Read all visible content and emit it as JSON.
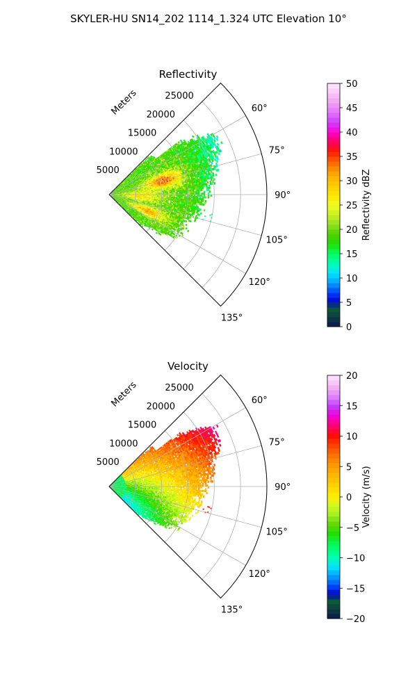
{
  "suptitle": "SKYLER-HU  SN14_202  1114_1.324 UTC Elevation 10°",
  "chart_data": [
    {
      "type": "polar-sector",
      "title": "Reflectivity",
      "radial_label": "Meters",
      "radial_ticks": [
        5000,
        10000,
        15000,
        20000,
        25000
      ],
      "radial_tick_labels": [
        "5000",
        "10000",
        "15000",
        "20000",
        "25000"
      ],
      "rlim": [
        0,
        30000
      ],
      "theta_ticks": [
        60,
        75,
        90,
        105,
        120,
        135
      ],
      "theta_tick_labels": [
        "60°",
        "75°",
        "90°",
        "105°",
        "120°",
        "135°"
      ],
      "thetalim_deg": [
        45,
        135
      ],
      "grid": true,
      "colorbar": {
        "label": "Reflectivity dBZ",
        "range": [
          0,
          50
        ],
        "ticks": [
          0,
          5,
          10,
          15,
          20,
          25,
          30,
          35,
          40,
          45,
          50
        ],
        "tick_labels": [
          "0",
          "5",
          "10",
          "15",
          "20",
          "25",
          "30",
          "35",
          "40",
          "45",
          "50"
        ],
        "colors": [
          {
            "v": 0,
            "c": "#0a1a4e"
          },
          {
            "v": 2,
            "c": "#0f3d3d"
          },
          {
            "v": 4,
            "c": "#0a5e3a"
          },
          {
            "v": 5,
            "c": "#0000c8"
          },
          {
            "v": 7,
            "c": "#0040ff"
          },
          {
            "v": 9,
            "c": "#00a0ff"
          },
          {
            "v": 11,
            "c": "#00e6ff"
          },
          {
            "v": 13,
            "c": "#00ffb4"
          },
          {
            "v": 15,
            "c": "#00ff60"
          },
          {
            "v": 17,
            "c": "#20e000"
          },
          {
            "v": 19,
            "c": "#50d000"
          },
          {
            "v": 21,
            "c": "#90e020"
          },
          {
            "v": 23,
            "c": "#c8f020"
          },
          {
            "v": 25,
            "c": "#f0ff20"
          },
          {
            "v": 27,
            "c": "#ffe600"
          },
          {
            "v": 30,
            "c": "#ffc000"
          },
          {
            "v": 32,
            "c": "#ff9a00"
          },
          {
            "v": 34,
            "c": "#ff6000"
          },
          {
            "v": 36,
            "c": "#ff1800"
          },
          {
            "v": 38,
            "c": "#ff0060"
          },
          {
            "v": 40,
            "c": "#ff00d0"
          },
          {
            "v": 42,
            "c": "#d040ff"
          },
          {
            "v": 44,
            "c": "#e070ff"
          },
          {
            "v": 46,
            "c": "#f0a0f0"
          },
          {
            "v": 48,
            "c": "#f8c8f8"
          },
          {
            "v": 50,
            "c": "#fde6fd"
          }
        ]
      }
    },
    {
      "type": "polar-sector",
      "title": "Velocity",
      "radial_label": "Meters",
      "radial_ticks": [
        5000,
        10000,
        15000,
        20000,
        25000
      ],
      "radial_tick_labels": [
        "5000",
        "10000",
        "15000",
        "20000",
        "25000"
      ],
      "rlim": [
        0,
        30000
      ],
      "theta_ticks": [
        60,
        75,
        90,
        105,
        120,
        135
      ],
      "theta_tick_labels": [
        "60°",
        "75°",
        "90°",
        "105°",
        "120°",
        "135°"
      ],
      "thetalim_deg": [
        45,
        135
      ],
      "grid": true,
      "colorbar": {
        "label": "Velocity (m/s)",
        "range": [
          -20,
          20
        ],
        "ticks": [
          -20,
          -15,
          -10,
          -5,
          0,
          5,
          10,
          15,
          20
        ],
        "tick_labels": [
          "−20",
          "−15",
          "−10",
          "−5",
          "0",
          "5",
          "10",
          "15",
          "20"
        ],
        "colors": [
          {
            "v": -20,
            "c": "#0a1a4e"
          },
          {
            "v": -18.5,
            "c": "#0f3d3d"
          },
          {
            "v": -17,
            "c": "#0a5e3a"
          },
          {
            "v": -16,
            "c": "#0000c8"
          },
          {
            "v": -14.5,
            "c": "#0050ff"
          },
          {
            "v": -13,
            "c": "#00a0ff"
          },
          {
            "v": -11.5,
            "c": "#00e6ff"
          },
          {
            "v": -10,
            "c": "#00ffb4"
          },
          {
            "v": -8,
            "c": "#00ff60"
          },
          {
            "v": -6,
            "c": "#20e000"
          },
          {
            "v": -4.5,
            "c": "#60d800"
          },
          {
            "v": -3,
            "c": "#a0f020"
          },
          {
            "v": -1.5,
            "c": "#d0f820"
          },
          {
            "v": 0,
            "c": "#fff000"
          },
          {
            "v": 2,
            "c": "#ffd000"
          },
          {
            "v": 4,
            "c": "#ffb000"
          },
          {
            "v": 6,
            "c": "#ff8a00"
          },
          {
            "v": 8,
            "c": "#ff5000"
          },
          {
            "v": 10,
            "c": "#ff1000"
          },
          {
            "v": 12,
            "c": "#ff0080"
          },
          {
            "v": 13.5,
            "c": "#f000e0"
          },
          {
            "v": 15,
            "c": "#c040ff"
          },
          {
            "v": 16.5,
            "c": "#e080ff"
          },
          {
            "v": 18,
            "c": "#f4b0f4"
          },
          {
            "v": 20,
            "c": "#fde6fd"
          }
        ]
      }
    }
  ]
}
